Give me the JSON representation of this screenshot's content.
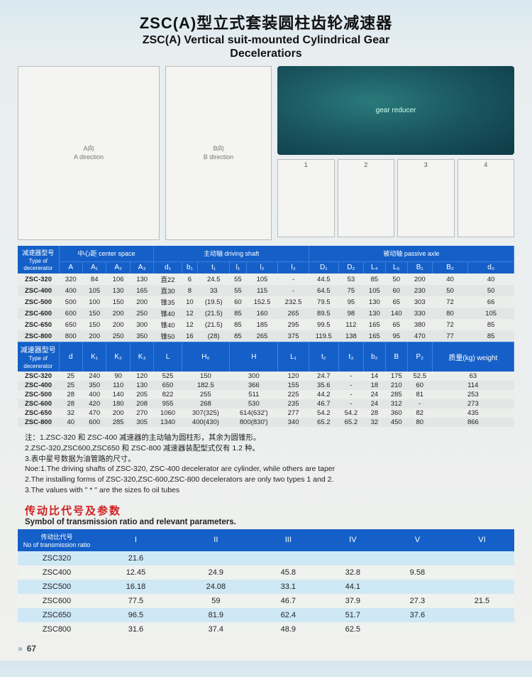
{
  "title": {
    "cn": "ZSC(A)型立式套装圆柱齿轮减速器",
    "en_line1": "ZSC(A) Vertical suit-mounted Cylindrical Gear",
    "en_line2": "Deceleratiors"
  },
  "diagram_labels": {
    "b_dir": "B向\nB direction",
    "a_dir": "A向\nA direction",
    "small": [
      "1",
      "2",
      "3",
      "4"
    ]
  },
  "spec_table": {
    "group_headers": {
      "model_cn": "减速器型号",
      "model_en": "Type of decererator",
      "center": "中心距 center space",
      "driving": "主动轴 driving shaft",
      "passive": "被动轴 passive axle"
    },
    "cols_top": [
      "A",
      "A₁",
      "A₂",
      "A₃",
      "d₁",
      "b₁",
      "t₁",
      "l₁",
      "l₂",
      "l₃",
      "D₁",
      "D₂",
      "L₄",
      "L₅",
      "B₁",
      "B₂",
      "d₀"
    ],
    "rows_top": [
      [
        "ZSC-320",
        "320",
        "84",
        "106",
        "130",
        "直22",
        "6",
        "24.5",
        "55",
        "105",
        "-",
        "44.5",
        "53",
        "85",
        "50",
        "200",
        "40",
        "40"
      ],
      [
        "ZSC-400",
        "400",
        "105",
        "130",
        "165",
        "直30",
        "8",
        "33",
        "55",
        "115",
        "-",
        "64.5",
        "75",
        "105",
        "60",
        "230",
        "50",
        "50"
      ],
      [
        "ZSC-500",
        "500",
        "100",
        "150",
        "200",
        "锥35",
        "10",
        "(19.5)",
        "60",
        "152.5",
        "232.5",
        "79.5",
        "95",
        "130",
        "65",
        "303",
        "72",
        "66"
      ],
      [
        "ZSC-600",
        "600",
        "150",
        "200",
        "250",
        "锥40",
        "12",
        "(21.5)",
        "85",
        "160",
        "265",
        "89.5",
        "98",
        "130",
        "140",
        "330",
        "80",
        "105"
      ],
      [
        "ZSC-650",
        "650",
        "150",
        "200",
        "300",
        "锥40",
        "12",
        "(21.5)",
        "85",
        "185",
        "295",
        "99.5",
        "112",
        "165",
        "65",
        "380",
        "72",
        "85"
      ],
      [
        "ZSC-800",
        "800",
        "200",
        "250",
        "350",
        "锥50",
        "16",
        "(28)",
        "85",
        "265",
        "375",
        "119.5",
        "138",
        "165",
        "95",
        "470",
        "77",
        "85"
      ]
    ],
    "cols_bot_label_cn": "减速器型号",
    "cols_bot_label_en": "Type of decererator",
    "cols_bot": [
      "d",
      "K₁",
      "K₂",
      "K₃",
      "L",
      "H₀",
      "H",
      "L₁",
      "t₂",
      "t₃",
      "b₂",
      "B",
      "P₂",
      "质量(kg) weight"
    ],
    "rows_bot": [
      [
        "ZSC-320",
        "25",
        "240",
        "90",
        "120",
        "525",
        "150",
        "300",
        "120",
        "24.7",
        "-",
        "14",
        "175",
        "52.5",
        "63"
      ],
      [
        "ZSC-400",
        "25",
        "350",
        "110",
        "130",
        "650",
        "182.5",
        "366",
        "155",
        "35.6",
        "-",
        "18",
        "210",
        "60",
        "114"
      ],
      [
        "ZSC-500",
        "28",
        "400",
        "140",
        "205",
        "822",
        "255",
        "511",
        "225",
        "44.2",
        "-",
        "24",
        "285",
        "81",
        "253"
      ],
      [
        "ZSC-600",
        "28",
        "420",
        "180",
        "208",
        "955",
        "268",
        "530",
        "235",
        "46.7",
        "-",
        "24",
        "312",
        "-",
        "273"
      ],
      [
        "ZSC-650",
        "32",
        "470",
        "200",
        "270",
        "1060",
        "307(325)",
        "614(632')",
        "277",
        "54.2",
        "54.2",
        "28",
        "360",
        "82",
        "435"
      ],
      [
        "ZSC-800",
        "40",
        "600",
        "285",
        "305",
        "1340",
        "400(430)",
        "800(830')",
        "340",
        "65.2",
        "65.2",
        "32",
        "450",
        "80",
        "866"
      ]
    ]
  },
  "notes": [
    "注：1.ZSC-320 和 ZSC-400 减速器的主动轴为圆柱形，其余为圆锥形。",
    "2.ZSC-320,ZSC600,ZSC650 和 ZSC-800 减速器装配型式仅有 1.2 种。",
    "3.表中星号数据为油管路的尺寸。",
    "Noe:1.The driving shafts of ZSC-320, ZSC-400 decelerator are cylinder, while others are taper",
    "2.The installing forms of ZSC-320,ZSC-600,ZSC-800 decelerators are only two types 1 and 2.",
    "3.The values with \" * \" are the sizes fo oil tubes"
  ],
  "ratio": {
    "title_cn": "传动比代号及参数",
    "title_en": "Symbol of transmission ratio and relevant parameters.",
    "corner_cn": "传动比代号",
    "corner_en": "No of transmission ratio",
    "cols": [
      "I",
      "II",
      "III",
      "IV",
      "V",
      "VI"
    ],
    "rows": [
      [
        "ZSC320",
        "21.6",
        "",
        "",
        "",
        "",
        ""
      ],
      [
        "ZSC400",
        "12.45",
        "24.9",
        "45.8",
        "32.8",
        "9.58",
        ""
      ],
      [
        "ZSC500",
        "16.18",
        "24.08",
        "33.1",
        "44.1",
        "",
        ""
      ],
      [
        "ZSC600",
        "77.5",
        "59",
        "46.7",
        "37.9",
        "27.3",
        "21.5"
      ],
      [
        "ZSC650",
        "96.5",
        "81.9",
        "62.4",
        "51.7",
        "37.6",
        ""
      ],
      [
        "ZSC800",
        "31.6",
        "37.4",
        "48.9",
        "62.5",
        "",
        ""
      ]
    ]
  },
  "page_number": "67"
}
